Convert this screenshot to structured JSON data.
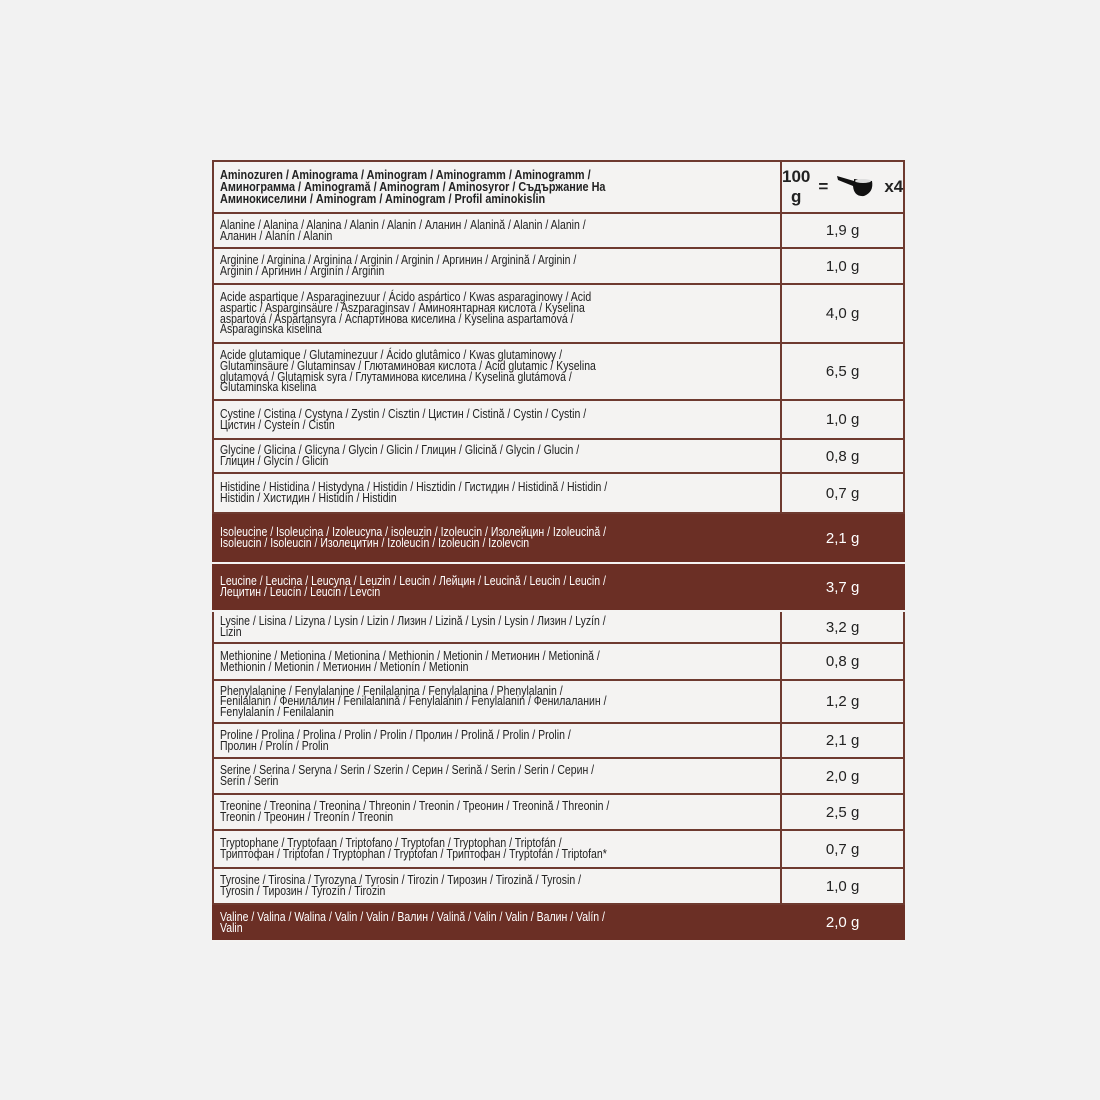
{
  "header": {
    "title_lines": [
      "Aminozuren / Aminograma / Aminogram / Aminogramm / Aminogramm /",
      "Аминограмма / Aminogramă / Aminogram / Aminosyror / Съдържание На",
      "Аминокиселини / Aminogram / Aminogram / Profil aminokislin"
    ],
    "serving_amount": "100 g",
    "equals": "=",
    "scoop_icon": "measuring-scoop-icon",
    "scoop_count": "x4"
  },
  "colors": {
    "border": "#6e3a30",
    "highlight": "#6b2f25",
    "cell": "#f4f3f2"
  },
  "rows": [
    {
      "lines": [
        "Alanine / Alanina / Alanina / Alanin / Alanin / Аланин / Alanină / Alanin / Alanin /",
        "Аланин / Alanín / Alanin"
      ],
      "value": "1,9 g",
      "highlight": false
    },
    {
      "lines": [
        "Arginine / Arginina / Arginina / Arginin / Arginin / Аргинин / Arginină / Arginin /",
        "Arginin / Аргинин / Arginín / Arginin"
      ],
      "value": "1,0 g",
      "highlight": false
    },
    {
      "lines": [
        "Acide aspartique / Asparaginezuur / Ácido aspártico / Kwas asparaginowy / Acid",
        "aspartic / Asparginsäure / Aszparaginsav / Аминоянтарная кислота / Kyselina",
        "aspartová / Aspartansyra / Аспартинова киселина / Kyselina aspartamová /",
        "Asparaginska kiselina"
      ],
      "value": "4,0 g",
      "highlight": false
    },
    {
      "lines": [
        "Acide glutamique / Glutaminezuur / Ácido glutâmico / Kwas glutaminowy /",
        "Glutaminsäure / Glutaminsav / Глютаминовая кислота / Acid glutamic / Kyselina",
        "glutamová / Glutamisk syra / Глутаминова киселина / Kyselina glutámová /",
        "Glutaminska kiselina"
      ],
      "value": "6,5 g",
      "highlight": false
    },
    {
      "lines": [
        "Cystine / Cistina / Cystyna / Zystin / Cisztin / Цистин / Cistină / Cystin / Cystin /",
        "Цистин / Cysteín / Cistin"
      ],
      "value": "1,0 g",
      "highlight": false
    },
    {
      "lines": [
        "Glycine / Glicina / Glicyna / Glycin / Glicin / Глицин / Glicină / Glycin / Glucin /",
        "Глицин / Glycín / Glicin"
      ],
      "value": "0,8 g",
      "highlight": false
    },
    {
      "lines": [
        "Histidine / Histidina / Histydyna / Histidin / Hisztidin / Гистидин / Histidină / Histidin /",
        "Histidin / Хистидин / Histidín / Histidin"
      ],
      "value": "0,7 g",
      "highlight": false
    },
    {
      "lines": [
        "Isoleucine / Isoleucina / Izoleucyna / isoleuzin / Izoleucin / Изолейцин / Izoleucină /",
        "Isoleucin / Isoleucin / Изолецитин / Izoleucín / Izoleucin / Izolevcin"
      ],
      "value": "2,1 g",
      "highlight": true
    },
    {
      "lines": [
        "Leucine / Leucina / Leucyna / Leuzin / Leucin / Лейцин / Leucină / Leucin / Leucin /",
        "Лецитин / Leucín / Leucin / Levcin"
      ],
      "value": "3,7 g",
      "highlight": true
    },
    {
      "lines": [
        "Lysine / Lisina / Lizyna / Lysin / Lizin / Лизин / Lizină / Lysin / Lysin / Лизин / Lyzín /",
        "Lizin"
      ],
      "value": "3,2 g",
      "highlight": false
    },
    {
      "lines": [
        "Methionine / Metionina / Metionina / Methionin / Metionin / Метионин / Metionină /",
        "Methionin / Metionin / Метионин / Metionín / Metionin"
      ],
      "value": "0,8 g",
      "highlight": false
    },
    {
      "lines": [
        "Phenylalanine / Fenylalanine / Fenilalanina / Fenylalanina / Phenylalanin /",
        "Fenilalanin / Фенилалин / Fenilalanină / Fenylalanin / Fenylalanin / Фенилаланин /",
        "Fenylalanín / Fenilalanin"
      ],
      "value": "1,2 g",
      "highlight": false
    },
    {
      "lines": [
        "Proline / Prolina / Prolina / Prolin / Prolin / Пролин / Prolină / Prolin / Prolin /",
        "Пролин / Prolín / Prolin"
      ],
      "value": "2,1 g",
      "highlight": false
    },
    {
      "lines": [
        "Serine / Serina / Seryna / Serin / Szerin / Серин / Serină / Serin / Serin / Серин /",
        "Serín / Serin"
      ],
      "value": "2,0 g",
      "highlight": false
    },
    {
      "lines": [
        "Treonine / Treonina / Treonina / Threonin / Treonin / Треонин / Treonină / Threonin /",
        "Treonin / Треонин / Treonín / Treonin"
      ],
      "value": "2,5 g",
      "highlight": false
    },
    {
      "lines": [
        "Tryptophane / Tryptofaan / Triptofano / Tryptofan / Tryptophan / Triptofán /",
        "Триптофан / Triptofan / Tryptophan / Tryptofan / Триптофан / Tryptofán / Triptofan*"
      ],
      "value": "0,7 g",
      "highlight": false
    },
    {
      "lines": [
        "Tyrosine / Tirosina / Tyrozyna / Tyrosin / Tirozin / Тирозин / Tirozină / Tyrosin /",
        "Tyrosin / Тирозин / Tyrozín / Tirozin"
      ],
      "value": "1,0 g",
      "highlight": false
    },
    {
      "lines": [
        "Valine / Valina / Walina / Valin / Valin / Валин / Valină / Valin / Valin / Валин / Valín /",
        "Valin"
      ],
      "value": "2,0 g",
      "highlight": true
    }
  ]
}
